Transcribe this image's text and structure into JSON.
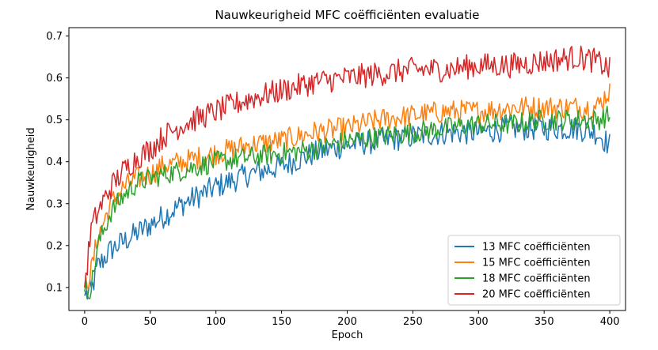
{
  "chart_data": {
    "type": "line",
    "title": "Nauwkeurigheid MFC coëfficiënten evaluatie",
    "xlabel": "Epoch",
    "ylabel": "Nauwkeurigheid",
    "xlim": [
      -12,
      412
    ],
    "ylim": [
      0.045,
      0.72
    ],
    "xticks": [
      0,
      50,
      100,
      150,
      200,
      250,
      300,
      350,
      400
    ],
    "yticks": [
      0.1,
      0.2,
      0.3,
      0.4,
      0.5,
      0.6,
      0.7
    ],
    "ytick_labels": [
      "0.1",
      "0.2",
      "0.3",
      "0.4",
      "0.5",
      "0.6",
      "0.7"
    ],
    "grid": false,
    "legend_position": "lower-right",
    "series": [
      {
        "name": "13 MFC coëfficiënten",
        "color": "#1f77b4",
        "x": [
          0,
          5,
          10,
          20,
          30,
          40,
          50,
          60,
          75,
          100,
          125,
          150,
          175,
          200,
          225,
          250,
          275,
          300,
          325,
          350,
          375,
          390,
          400
        ],
        "values": [
          0.08,
          0.09,
          0.15,
          0.19,
          0.21,
          0.23,
          0.25,
          0.27,
          0.3,
          0.34,
          0.37,
          0.39,
          0.42,
          0.44,
          0.45,
          0.46,
          0.47,
          0.47,
          0.48,
          0.48,
          0.48,
          0.47,
          0.44
        ]
      },
      {
        "name": "15 MFC coëfficiënten",
        "color": "#ff7f0e",
        "x": [
          0,
          5,
          10,
          20,
          30,
          40,
          50,
          60,
          75,
          100,
          125,
          150,
          175,
          200,
          225,
          250,
          275,
          300,
          325,
          350,
          375,
          390,
          400
        ],
        "values": [
          0.1,
          0.14,
          0.22,
          0.3,
          0.34,
          0.36,
          0.37,
          0.39,
          0.4,
          0.42,
          0.44,
          0.45,
          0.47,
          0.48,
          0.5,
          0.51,
          0.52,
          0.52,
          0.53,
          0.53,
          0.53,
          0.53,
          0.57
        ]
      },
      {
        "name": "18 MFC coëfficiënten",
        "color": "#2ca02c",
        "x": [
          0,
          5,
          10,
          20,
          30,
          40,
          50,
          60,
          75,
          100,
          125,
          150,
          175,
          200,
          225,
          250,
          275,
          300,
          325,
          350,
          375,
          390,
          400
        ],
        "values": [
          0.09,
          0.1,
          0.2,
          0.28,
          0.32,
          0.35,
          0.36,
          0.37,
          0.38,
          0.4,
          0.41,
          0.42,
          0.43,
          0.45,
          0.46,
          0.47,
          0.48,
          0.49,
          0.49,
          0.5,
          0.5,
          0.5,
          0.51
        ]
      },
      {
        "name": "20 MFC coëfficiënten",
        "color": "#d62728",
        "x": [
          0,
          5,
          10,
          20,
          30,
          40,
          50,
          60,
          75,
          100,
          125,
          150,
          175,
          200,
          225,
          250,
          275,
          300,
          325,
          350,
          375,
          390,
          400
        ],
        "values": [
          0.1,
          0.24,
          0.28,
          0.34,
          0.38,
          0.41,
          0.43,
          0.46,
          0.49,
          0.52,
          0.55,
          0.57,
          0.59,
          0.6,
          0.61,
          0.62,
          0.62,
          0.63,
          0.63,
          0.64,
          0.65,
          0.64,
          0.62
        ]
      }
    ]
  }
}
